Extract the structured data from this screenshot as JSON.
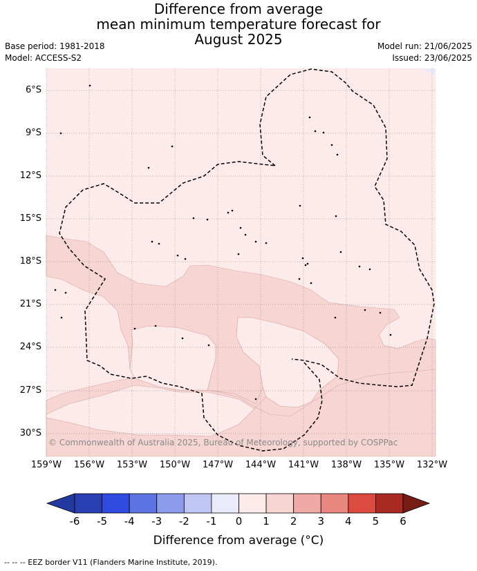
{
  "title_lines": [
    "Difference from average",
    "mean minimum temperature forecast for",
    "August 2025"
  ],
  "meta_left": [
    "Base period: 1981-2018",
    "Model: ACCESS-S2"
  ],
  "meta_right": [
    "Model run: 21/06/2025",
    "Issued: 23/06/2025"
  ],
  "copyright": "© Commonwealth of Australia 2025, Bureau of Meteorology, supported by COSPPac",
  "footnote": "-- -- -- EEZ border V11 (Flanders Marine Institute, 2019).",
  "map": {
    "lat_ticks": [
      "6°S",
      "9°S",
      "12°S",
      "15°S",
      "18°S",
      "21°S",
      "24°S",
      "27°S",
      "30°S"
    ],
    "lon_ticks": [
      "159°W",
      "156°W",
      "153°W",
      "150°W",
      "147°W",
      "144°W",
      "141°W",
      "138°W",
      "135°W",
      "132°W"
    ],
    "region_colors": {
      "zero_to_one": "#fcebea",
      "one_to_two": "#f6d5d3"
    }
  },
  "colorbar": {
    "title": "Difference from average (°C)",
    "ticks": [
      "-6",
      "-5",
      "-4",
      "-3",
      "-2",
      "-1",
      "0",
      "1",
      "2",
      "3",
      "4",
      "5",
      "6"
    ],
    "colors": [
      "#24399f",
      "#2a3fb3",
      "#2f4be0",
      "#5d73e3",
      "#8c9bec",
      "#c0c6f3",
      "#e9ebfb",
      "#fcebea",
      "#f6d5d3",
      "#efaaa6",
      "#e88680",
      "#dc4a40",
      "#a92a20",
      "#761c15"
    ]
  }
}
